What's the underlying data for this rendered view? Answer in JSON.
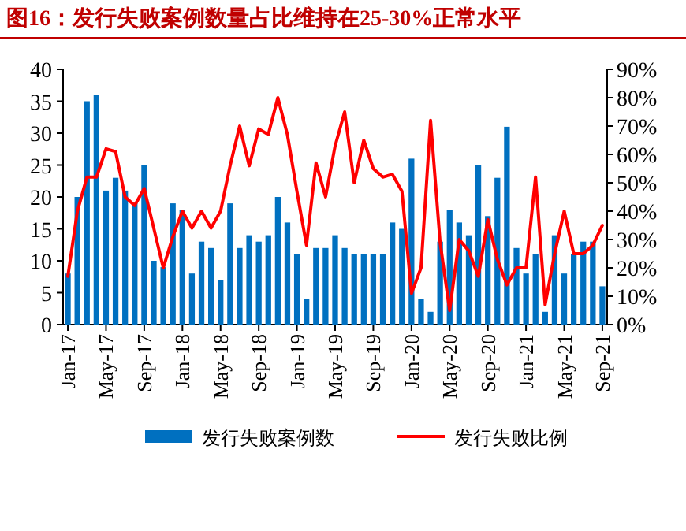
{
  "chart_data": {
    "type": "bar",
    "title": "图16：发行失败案例数量占比维持在25-30%正常水平",
    "categories": [
      "Jan-17",
      null,
      null,
      null,
      "May-17",
      null,
      null,
      null,
      "Sep-17",
      null,
      null,
      null,
      "Jan-18",
      null,
      null,
      null,
      "May-18",
      null,
      null,
      null,
      "Sep-18",
      null,
      null,
      null,
      "Jan-19",
      null,
      null,
      null,
      "May-19",
      null,
      null,
      null,
      "Sep-19",
      null,
      null,
      null,
      "Jan-20",
      null,
      null,
      null,
      "May-20",
      null,
      null,
      null,
      "Sep-20",
      null,
      null,
      null,
      "Jan-21",
      null,
      null,
      null,
      "May-21",
      null,
      null,
      null,
      "Sep-21"
    ],
    "series": [
      {
        "name": "发行失败案例数",
        "color": "#0070c0",
        "values": [
          8,
          20,
          35,
          36,
          21,
          23,
          21,
          19,
          25,
          10,
          9,
          19,
          18,
          8,
          13,
          12,
          7,
          19,
          12,
          14,
          13,
          14,
          20,
          16,
          11,
          4,
          12,
          12,
          14,
          12,
          11,
          11,
          11,
          11,
          16,
          15,
          26,
          4,
          2,
          13,
          18,
          16,
          14,
          25,
          17,
          23,
          31,
          12,
          8,
          11,
          2,
          14,
          8,
          11,
          13,
          13,
          6
        ]
      },
      {
        "name": "发行失败比例",
        "type": "line",
        "axis": "y2",
        "color": "#ff0000",
        "values": [
          17,
          40,
          52,
          52,
          62,
          61,
          45,
          42,
          48,
          34,
          20,
          31,
          40,
          34,
          40,
          34,
          40,
          56,
          70,
          56,
          69,
          67,
          80,
          67,
          47,
          28,
          57,
          45,
          63,
          75,
          50,
          65,
          55,
          52,
          53,
          47,
          11,
          20,
          72,
          29,
          5,
          30,
          26,
          17,
          37,
          23,
          14,
          20,
          20,
          52,
          7,
          25,
          40,
          25,
          25,
          28,
          35
        ]
      }
    ],
    "ylim": [
      0,
      40
    ],
    "yticks": [
      0,
      5,
      10,
      15,
      20,
      25,
      30,
      35,
      40
    ],
    "y2lim": [
      0,
      90
    ],
    "y2ticks": [
      {
        "value": 0,
        "label": "0%"
      },
      {
        "value": 10,
        "label": "10%"
      },
      {
        "value": 20,
        "label": "20%"
      },
      {
        "value": 30,
        "label": "30%"
      },
      {
        "value": 40,
        "label": "40%"
      },
      {
        "value": 50,
        "label": "50%"
      },
      {
        "value": 60,
        "label": "60%"
      },
      {
        "value": 70,
        "label": "70%"
      },
      {
        "value": 80,
        "label": "80%"
      },
      {
        "value": 90,
        "label": "90%"
      }
    ],
    "grid": false,
    "legend": "bottom"
  }
}
